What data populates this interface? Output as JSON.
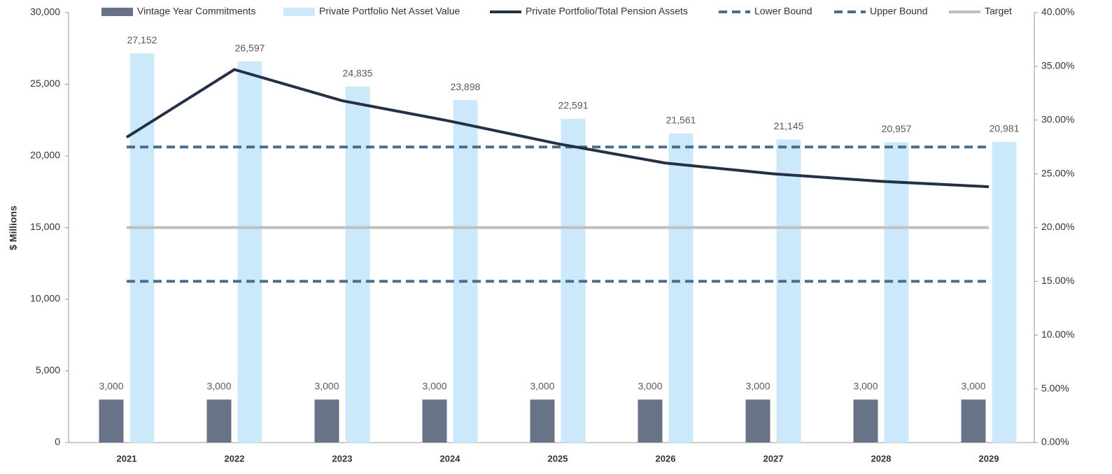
{
  "chart_data": {
    "type": "bar",
    "y_label": "$ Millions",
    "categories": [
      "2021",
      "2022",
      "2023",
      "2024",
      "2025",
      "2026",
      "2027",
      "2028",
      "2029"
    ],
    "series": [
      {
        "name": "Vintage Year Commitments",
        "type": "bar",
        "color": "#687387",
        "values": [
          3000,
          3000,
          3000,
          3000,
          3000,
          3000,
          3000,
          3000,
          3000
        ],
        "value_labels": [
          "3,000",
          "3,000",
          "3,000",
          "3,000",
          "3,000",
          "3,000",
          "3,000",
          "3,000",
          "3,000"
        ]
      },
      {
        "name": "Private Portfolio Net Asset Value",
        "type": "bar",
        "color": "#cce9fb",
        "values": [
          27152,
          26597,
          24835,
          23898,
          22591,
          21561,
          21145,
          20957,
          20981
        ],
        "value_labels": [
          "27,152",
          "26,597",
          "24,835",
          "23,898",
          "22,591",
          "21,561",
          "21,145",
          "20,957",
          "20,981"
        ]
      },
      {
        "name": "Private Portfolio/Total Pension Assets",
        "type": "line",
        "axis": "y2",
        "color": "#243045",
        "values": [
          28.4,
          34.7,
          31.8,
          29.9,
          27.8,
          26.0,
          25.0,
          24.3,
          23.8
        ]
      },
      {
        "name": "Lower Bound",
        "type": "line",
        "axis": "y2",
        "color": "#4a6e8a",
        "dashed": true,
        "values": [
          15,
          15,
          15,
          15,
          15,
          15,
          15,
          15,
          15
        ]
      },
      {
        "name": "Upper Bound",
        "type": "line",
        "axis": "y2",
        "color": "#4a6e8a",
        "dashed": true,
        "values": [
          27.5,
          27.5,
          27.5,
          27.5,
          27.5,
          27.5,
          27.5,
          27.5,
          27.5
        ]
      },
      {
        "name": "Target",
        "type": "line",
        "axis": "y2",
        "color": "#bfbfbf",
        "values": [
          20,
          20,
          20,
          20,
          20,
          20,
          20,
          20,
          20
        ]
      }
    ],
    "ylim": [
      0,
      30000
    ],
    "yticks": [
      0,
      {
        "value": 5000,
        "label": "5,000"
      },
      {
        "value": 10000,
        "label": "10,000"
      },
      {
        "value": 15000,
        "label": "15,000"
      },
      {
        "value": 20000,
        "label": "20,000"
      },
      {
        "value": 25000,
        "label": "25,000"
      },
      {
        "value": 30000,
        "label": "30,000"
      }
    ],
    "y2lim": [
      0,
      40
    ],
    "y2ticks": [
      {
        "value": 0,
        "label": "0.00%"
      },
      {
        "value": 5,
        "label": "5.00%"
      },
      {
        "value": 10,
        "label": "10.00%"
      },
      {
        "value": 15,
        "label": "15.00%"
      },
      {
        "value": 20,
        "label": "20.00%"
      },
      {
        "value": 25,
        "label": "25.00%"
      },
      {
        "value": 30,
        "label": "30.00%"
      },
      {
        "value": 35,
        "label": "35.00%"
      },
      {
        "value": 40,
        "label": "40.00%"
      }
    ],
    "legend": "top"
  }
}
